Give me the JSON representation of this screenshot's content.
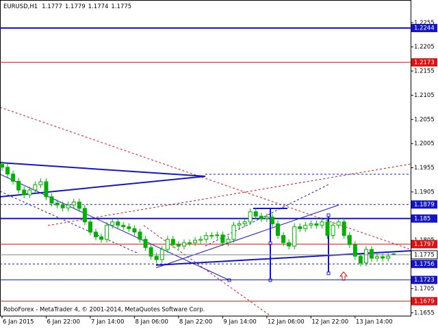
{
  "chart_data": {
    "type": "candlestick",
    "symbol": "EURUSD,H1",
    "footer": "RoboForex - MetaTrader 4, © 2001-2014, MetaQuotes Software Corp.",
    "categories": [
      "6 Jan 2015",
      null,
      null,
      null,
      null,
      null,
      null,
      null,
      "6 Jan 22:00",
      null,
      null,
      null,
      null,
      null,
      null,
      null,
      "7 Jan 14:00",
      null,
      null,
      null,
      null,
      null,
      null,
      null,
      "8 Jan 06:00",
      null,
      null,
      null,
      null,
      null,
      null,
      null,
      "8 Jan 22:00",
      null,
      null,
      null,
      null,
      null,
      null,
      null,
      "9 Jan 14:00",
      null,
      null,
      null,
      null,
      null,
      null,
      null,
      "12 Jan 06:00",
      null,
      null,
      null,
      null,
      null,
      null,
      null,
      "12 Jan 22:00",
      null,
      null,
      null,
      null,
      null,
      null,
      null,
      "13 Jan 14:00",
      null,
      null,
      null,
      null,
      null,
      null,
      null
    ],
    "open": [
      1.1962,
      1.1956,
      1.1942,
      1.1927,
      1.1909,
      1.1899,
      1.1909,
      1.192,
      1.1926,
      1.1895,
      1.1882,
      1.1878,
      1.1872,
      1.1878,
      1.1884,
      1.1871,
      1.1843,
      1.1822,
      1.1812,
      1.1807,
      1.1836,
      1.1843,
      1.1836,
      1.1833,
      1.1829,
      1.1822,
      1.1807,
      1.179,
      1.1772,
      1.1765,
      1.1786,
      1.1807,
      1.1796,
      1.1793,
      1.18,
      1.18,
      1.1805,
      1.1807,
      1.1815,
      1.1815,
      1.1816,
      1.18,
      1.1807,
      1.1836,
      1.1839,
      1.1843,
      1.1864,
      1.1855,
      1.185,
      1.1853,
      1.1839,
      1.1815,
      1.18,
      1.1793,
      1.1833,
      1.1829,
      1.1836,
      1.1839,
      1.1836,
      1.1843,
      1.1815,
      1.1836,
      1.1843,
      1.1815,
      1.1796,
      1.1772,
      1.1758,
      1.1786,
      1.1768,
      1.1771,
      1.1768,
      1.1777
    ],
    "high": [
      1.1969,
      1.1963,
      1.1949,
      1.1934,
      1.1916,
      1.1916,
      1.1927,
      1.1933,
      1.1933,
      1.1902,
      1.1889,
      1.1885,
      1.1885,
      1.1891,
      1.1891,
      1.1878,
      1.185,
      1.1829,
      1.1819,
      1.1843,
      1.185,
      1.185,
      1.1843,
      1.184,
      1.1836,
      1.1829,
      1.1814,
      1.1797,
      1.1779,
      1.1793,
      1.1814,
      1.1814,
      1.1803,
      1.1807,
      1.1807,
      1.1812,
      1.1814,
      1.1822,
      1.1822,
      1.1823,
      1.1823,
      1.1814,
      1.1843,
      1.1846,
      1.185,
      1.1871,
      1.1871,
      1.1862,
      1.186,
      1.186,
      1.1846,
      1.1822,
      1.1807,
      1.184,
      1.184,
      1.1843,
      1.1846,
      1.1846,
      1.185,
      1.185,
      1.1843,
      1.185,
      1.185,
      1.1822,
      1.1803,
      1.1779,
      1.1793,
      1.1793,
      1.1778,
      1.1778,
      1.1779,
      1.1779
    ],
    "low": [
      1.1949,
      1.1935,
      1.192,
      1.1902,
      1.1892,
      1.1892,
      1.1902,
      1.1913,
      1.1888,
      1.1875,
      1.1871,
      1.1865,
      1.1865,
      1.1871,
      1.1864,
      1.1836,
      1.1815,
      1.1805,
      1.18,
      1.18,
      1.1829,
      1.1829,
      1.1826,
      1.1822,
      1.1815,
      1.18,
      1.1783,
      1.1765,
      1.1758,
      1.1758,
      1.1779,
      1.1789,
      1.1786,
      1.1786,
      1.1793,
      1.1793,
      1.1798,
      1.18,
      1.1808,
      1.1808,
      1.1793,
      1.1793,
      1.18,
      1.1829,
      1.1832,
      1.1836,
      1.1848,
      1.1843,
      1.1843,
      1.1832,
      1.1808,
      1.1793,
      1.1786,
      1.1786,
      1.1822,
      1.1822,
      1.1829,
      1.1829,
      1.1829,
      1.1808,
      1.1808,
      1.1829,
      1.1808,
      1.1789,
      1.1765,
      1.1751,
      1.1751,
      1.1761,
      1.1761,
      1.1761,
      1.1761,
      1.1774
    ],
    "close": [
      1.1956,
      1.1942,
      1.1927,
      1.1909,
      1.1899,
      1.1909,
      1.192,
      1.1926,
      1.1895,
      1.1882,
      1.1878,
      1.1872,
      1.1878,
      1.1884,
      1.1871,
      1.1843,
      1.1822,
      1.1812,
      1.1807,
      1.1836,
      1.1843,
      1.1836,
      1.1833,
      1.1829,
      1.1822,
      1.1807,
      1.179,
      1.1772,
      1.1765,
      1.1786,
      1.1807,
      1.1796,
      1.1793,
      1.18,
      1.18,
      1.1805,
      1.1807,
      1.1815,
      1.1815,
      1.1816,
      1.18,
      1.1807,
      1.1836,
      1.1839,
      1.1843,
      1.1864,
      1.1855,
      1.185,
      1.1853,
      1.1839,
      1.1815,
      1.18,
      1.1793,
      1.1833,
      1.1829,
      1.1836,
      1.1839,
      1.1836,
      1.1843,
      1.1815,
      1.1836,
      1.1843,
      1.1815,
      1.1796,
      1.1772,
      1.1758,
      1.1786,
      1.1768,
      1.1771,
      1.1768,
      1.1772,
      1.1775
    ],
    "up_color": "#00b000",
    "down_color": "#00b000",
    "ylim": [
      1.1649,
      1.2302
    ],
    "yticks": [
      1.2255,
      1.2205,
      1.2155,
      1.2105,
      1.2055,
      1.2005,
      1.1955,
      1.1905,
      1.1805,
      1.1705,
      1.1655
    ],
    "levels": [
      {
        "value": 1.2244,
        "color": "#1414c8",
        "style": "thick"
      },
      {
        "value": 1.2173,
        "color": "#e01010",
        "style": "solid"
      },
      {
        "value": 1.1879,
        "color": "#1414c8",
        "style": "dashed"
      },
      {
        "value": 1.185,
        "color": "#1414c8",
        "style": "thick"
      },
      {
        "value": 1.1797,
        "color": "#e01010",
        "style": "solid"
      },
      {
        "value": 1.1756,
        "color": "#1414c8",
        "style": "dashed"
      },
      {
        "value": 1.1723,
        "color": "#1414c8",
        "style": "solid"
      },
      {
        "value": 1.1679,
        "color": "#e01010",
        "style": "solid"
      }
    ]
  }
}
